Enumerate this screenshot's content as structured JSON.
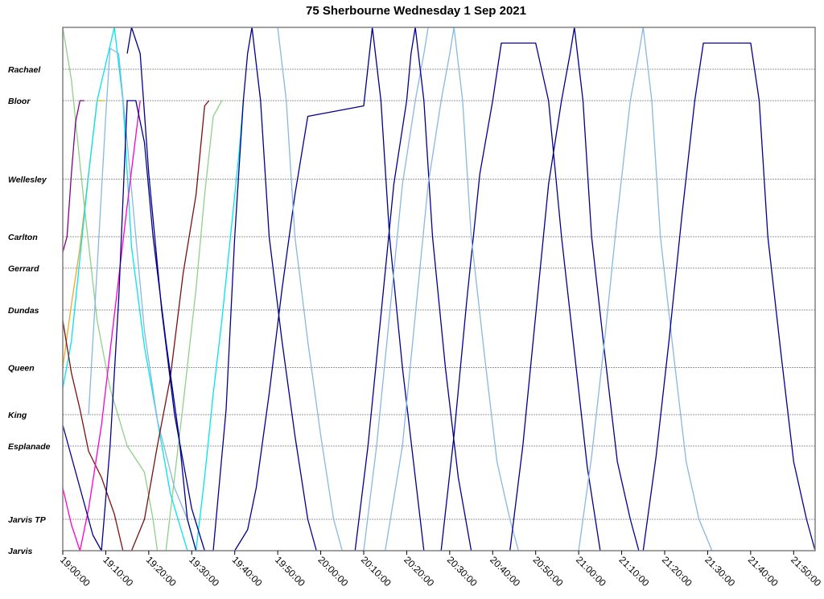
{
  "chart_data": {
    "type": "line",
    "title": "75 Sherbourne Wednesday 1 Sep 2021",
    "x_axis": {
      "min": "19:00:00",
      "max": "21:55:00",
      "ticks": [
        "19:00:00",
        "19:10:00",
        "19:20:00",
        "19:30:00",
        "19:40:00",
        "19:50:00",
        "20:00:00",
        "20:10:00",
        "20:20:00",
        "20:30:00",
        "20:40:00",
        "20:50:00",
        "21:00:00",
        "21:10:00",
        "21:20:00",
        "21:30:00",
        "21:40:00",
        "21:50:00"
      ]
    },
    "y_axis": {
      "stops": [
        {
          "name": "Jarvis",
          "pos": 0
        },
        {
          "name": "Jarvis TP",
          "pos": 0.06
        },
        {
          "name": "Esplanade",
          "pos": 0.2
        },
        {
          "name": "King",
          "pos": 0.26
        },
        {
          "name": "Queen",
          "pos": 0.35
        },
        {
          "name": "Dundas",
          "pos": 0.46
        },
        {
          "name": "Gerrard",
          "pos": 0.54
        },
        {
          "name": "Carlton",
          "pos": 0.6
        },
        {
          "name": "Wellesley",
          "pos": 0.71
        },
        {
          "name": "Bloor",
          "pos": 0.86
        },
        {
          "name": "Rachael",
          "pos": 0.92
        }
      ],
      "max": 1.0
    },
    "grid": "horizontal",
    "legend": "none",
    "series": [
      {
        "color": "#8fd08a",
        "points": [
          [
            "19:00:00",
            1.0
          ],
          [
            "19:02:00",
            0.9
          ],
          [
            "19:05:00",
            0.66
          ],
          [
            "19:08:00",
            0.44
          ],
          [
            "19:11:00",
            0.31
          ],
          [
            "19:15:00",
            0.2
          ],
          [
            "19:19:00",
            0.15
          ],
          [
            "19:21:00",
            0.06
          ],
          [
            "19:22:00",
            0.0
          ]
        ]
      },
      {
        "color": "#8fd08a",
        "points": [
          [
            "19:24:00",
            0.0
          ],
          [
            "19:26:00",
            0.14
          ],
          [
            "19:28:00",
            0.28
          ],
          [
            "19:31:00",
            0.5
          ],
          [
            "19:33:00",
            0.68
          ],
          [
            "19:35:00",
            0.83
          ],
          [
            "19:37:00",
            0.86
          ]
        ]
      },
      {
        "color": "#f5a623",
        "points": [
          [
            "19:00:00",
            0.35
          ],
          [
            "19:02:00",
            0.47
          ],
          [
            "19:04:00",
            0.58
          ],
          [
            "19:06:00",
            0.72
          ],
          [
            "19:08:00",
            0.86
          ],
          [
            "19:10:00",
            0.86
          ]
        ]
      },
      {
        "color": "#800080",
        "points": [
          [
            "19:00:00",
            0.57
          ],
          [
            "19:01:00",
            0.6
          ],
          [
            "19:02:00",
            0.72
          ],
          [
            "19:03:00",
            0.82
          ],
          [
            "19:04:00",
            0.86
          ],
          [
            "19:05:00",
            0.86
          ]
        ]
      },
      {
        "color": "#00e5ee",
        "points": [
          [
            "19:00:00",
            0.31
          ],
          [
            "19:02:00",
            0.4
          ],
          [
            "19:04:00",
            0.56
          ],
          [
            "19:06:00",
            0.72
          ],
          [
            "19:08:00",
            0.86
          ],
          [
            "19:12:00",
            1.0
          ],
          [
            "19:14:00",
            0.86
          ],
          [
            "19:16:00",
            0.58
          ],
          [
            "19:19:00",
            0.39
          ],
          [
            "19:22:00",
            0.25
          ],
          [
            "19:25:00",
            0.11
          ],
          [
            "19:29:00",
            0.0
          ],
          [
            "19:31:00",
            0.0
          ],
          [
            "19:33:00",
            0.14
          ],
          [
            "19:35:00",
            0.3
          ],
          [
            "19:37:00",
            0.44
          ],
          [
            "19:39:00",
            0.6
          ],
          [
            "19:41:00",
            0.76
          ],
          [
            "19:42:00",
            0.86
          ]
        ]
      },
      {
        "color": "#87b8e0",
        "points": [
          [
            "19:06:00",
            0.26
          ],
          [
            "19:08:00",
            0.54
          ],
          [
            "19:10:00",
            0.83
          ],
          [
            "19:11:00",
            0.96
          ],
          [
            "19:13:00",
            0.95
          ],
          [
            "19:15:00",
            0.78
          ],
          [
            "19:17:00",
            0.6
          ],
          [
            "19:19:00",
            0.42
          ],
          [
            "19:22:00",
            0.25
          ],
          [
            "19:26:00",
            0.12
          ],
          [
            "19:29:00",
            0.06
          ],
          [
            "19:31:00",
            0.0
          ]
        ]
      },
      {
        "color": "#7b1010",
        "points": [
          [
            "19:00:00",
            0.44
          ],
          [
            "19:02:00",
            0.34
          ],
          [
            "19:04:00",
            0.27
          ],
          [
            "19:06:00",
            0.19
          ],
          [
            "19:09:00",
            0.14
          ],
          [
            "19:12:00",
            0.07
          ],
          [
            "19:14:00",
            0.0
          ],
          [
            "19:16:00",
            0.0
          ],
          [
            "19:19:00",
            0.06
          ],
          [
            "19:22:00",
            0.2
          ],
          [
            "19:25:00",
            0.33
          ],
          [
            "19:28:00",
            0.53
          ],
          [
            "19:31:00",
            0.68
          ],
          [
            "19:33:00",
            0.85
          ],
          [
            "19:34:00",
            0.86
          ]
        ]
      },
      {
        "color": "#ff00cc",
        "points": [
          [
            "19:00:00",
            0.12
          ],
          [
            "19:02:00",
            0.05
          ],
          [
            "19:04:00",
            0.0
          ],
          [
            "19:06:00",
            0.08
          ],
          [
            "19:09:00",
            0.24
          ],
          [
            "19:12:00",
            0.45
          ],
          [
            "19:15:00",
            0.66
          ],
          [
            "19:18:00",
            0.86
          ]
        ]
      },
      {
        "color": "#00008b",
        "points": [
          [
            "19:00:00",
            0.24
          ],
          [
            "19:04:00",
            0.12
          ],
          [
            "19:07:00",
            0.03
          ],
          [
            "19:09:00",
            0.0
          ],
          [
            "19:11:00",
            0.2
          ],
          [
            "19:13:00",
            0.48
          ],
          [
            "19:15:00",
            0.86
          ],
          [
            "19:17:00",
            0.86
          ],
          [
            "19:19:00",
            0.78
          ],
          [
            "19:21:00",
            0.6
          ],
          [
            "19:24:00",
            0.4
          ],
          [
            "19:27:00",
            0.22
          ],
          [
            "19:29:00",
            0.06
          ],
          [
            "19:31:00",
            0.0
          ],
          [
            "19:35:00",
            0.0
          ],
          [
            "19:38:00",
            0.27
          ],
          [
            "19:40:00",
            0.6
          ],
          [
            "19:42:00",
            0.86
          ],
          [
            "19:43:00",
            0.95
          ],
          [
            "19:44:00",
            1.0
          ]
        ]
      },
      {
        "color": "#00008b",
        "points": [
          [
            "19:15:00",
            0.95
          ],
          [
            "19:16:00",
            1.0
          ],
          [
            "19:18:00",
            0.95
          ],
          [
            "19:20:00",
            0.72
          ],
          [
            "19:23:00",
            0.46
          ],
          [
            "19:26:00",
            0.26
          ],
          [
            "19:30:00",
            0.08
          ],
          [
            "19:33:00",
            0.0
          ]
        ]
      },
      {
        "color": "#00008b",
        "points": [
          [
            "19:44:00",
            1.0
          ],
          [
            "19:46:00",
            0.86
          ],
          [
            "19:48:00",
            0.6
          ],
          [
            "19:51:00",
            0.4
          ],
          [
            "19:54:00",
            0.22
          ],
          [
            "19:57:00",
            0.06
          ],
          [
            "19:59:00",
            0.0
          ]
        ]
      },
      {
        "color": "#00008b",
        "points": [
          [
            "19:40:00",
            0.0
          ],
          [
            "19:43:00",
            0.04
          ],
          [
            "19:45:00",
            0.12
          ],
          [
            "19:48:00",
            0.3
          ],
          [
            "19:51:00",
            0.5
          ],
          [
            "19:54:00",
            0.68
          ],
          [
            "19:57:00",
            0.83
          ],
          [
            "20:10:00",
            0.85
          ],
          [
            "20:12:00",
            1.0
          ],
          [
            "20:14:00",
            0.86
          ],
          [
            "20:16:00",
            0.6
          ],
          [
            "20:19:00",
            0.35
          ],
          [
            "20:22:00",
            0.14
          ],
          [
            "20:24:00",
            0.0
          ]
        ]
      },
      {
        "color": "#87b8e0",
        "points": [
          [
            "19:50:00",
            1.0
          ],
          [
            "19:52:00",
            0.86
          ],
          [
            "19:54:00",
            0.6
          ],
          [
            "19:57:00",
            0.4
          ],
          [
            "20:00:00",
            0.22
          ],
          [
            "20:03:00",
            0.06
          ],
          [
            "20:05:00",
            0.0
          ],
          [
            "20:10:00",
            0.0
          ],
          [
            "20:13:00",
            0.2
          ],
          [
            "20:16:00",
            0.45
          ],
          [
            "20:19:00",
            0.7
          ],
          [
            "20:22:00",
            0.86
          ],
          [
            "20:24:00",
            0.95
          ],
          [
            "20:25:00",
            1.0
          ]
        ]
      },
      {
        "color": "#00008b",
        "points": [
          [
            "20:08:00",
            0.0
          ],
          [
            "20:11:00",
            0.2
          ],
          [
            "20:14:00",
            0.45
          ],
          [
            "20:17:00",
            0.7
          ],
          [
            "20:20:00",
            0.86
          ],
          [
            "20:21:00",
            0.95
          ],
          [
            "20:22:00",
            1.0
          ],
          [
            "20:24:00",
            0.86
          ],
          [
            "20:26:00",
            0.6
          ],
          [
            "20:29:00",
            0.35
          ],
          [
            "20:32:00",
            0.14
          ],
          [
            "20:35:00",
            0.0
          ]
        ]
      },
      {
        "color": "#00008b",
        "points": [
          [
            "20:28:00",
            0.0
          ],
          [
            "20:31:00",
            0.22
          ],
          [
            "20:34:00",
            0.48
          ],
          [
            "20:37:00",
            0.72
          ],
          [
            "20:40:00",
            0.86
          ],
          [
            "20:42:00",
            0.97
          ],
          [
            "20:50:00",
            0.97
          ],
          [
            "20:53:00",
            0.86
          ],
          [
            "20:56:00",
            0.6
          ],
          [
            "20:59:00",
            0.38
          ],
          [
            "21:02:00",
            0.16
          ],
          [
            "21:05:00",
            0.0
          ]
        ]
      },
      {
        "color": "#87b8e0",
        "points": [
          [
            "20:15:00",
            0.0
          ],
          [
            "20:19:00",
            0.2
          ],
          [
            "20:22:00",
            0.45
          ],
          [
            "20:25:00",
            0.7
          ],
          [
            "20:28:00",
            0.86
          ],
          [
            "20:30:00",
            0.95
          ],
          [
            "20:31:00",
            1.0
          ],
          [
            "20:33:00",
            0.86
          ],
          [
            "20:35:00",
            0.6
          ],
          [
            "20:38:00",
            0.38
          ],
          [
            "20:41:00",
            0.17
          ],
          [
            "20:44:00",
            0.06
          ],
          [
            "20:46:00",
            0.0
          ]
        ]
      },
      {
        "color": "#00008b",
        "points": [
          [
            "20:44:00",
            0.0
          ],
          [
            "20:47:00",
            0.2
          ],
          [
            "20:50:00",
            0.45
          ],
          [
            "20:53:00",
            0.7
          ],
          [
            "20:56:00",
            0.86
          ],
          [
            "20:58:00",
            0.95
          ],
          [
            "20:59:00",
            1.0
          ],
          [
            "21:01:00",
            0.86
          ],
          [
            "21:03:00",
            0.6
          ],
          [
            "21:06:00",
            0.38
          ],
          [
            "21:09:00",
            0.17
          ],
          [
            "21:12:00",
            0.06
          ],
          [
            "21:14:00",
            0.0
          ]
        ]
      },
      {
        "color": "#87b8e0",
        "points": [
          [
            "21:00:00",
            0.0
          ],
          [
            "21:03:00",
            0.18
          ],
          [
            "21:06:00",
            0.4
          ],
          [
            "21:09:00",
            0.64
          ],
          [
            "21:12:00",
            0.86
          ],
          [
            "21:14:00",
            0.95
          ],
          [
            "21:15:00",
            1.0
          ],
          [
            "21:17:00",
            0.86
          ],
          [
            "21:19:00",
            0.6
          ],
          [
            "21:22:00",
            0.38
          ],
          [
            "21:25:00",
            0.17
          ],
          [
            "21:28:00",
            0.06
          ],
          [
            "21:31:00",
            0.0
          ]
        ]
      },
      {
        "color": "#00008b",
        "points": [
          [
            "21:15:00",
            0.0
          ],
          [
            "21:18:00",
            0.18
          ],
          [
            "21:21:00",
            0.4
          ],
          [
            "21:24:00",
            0.64
          ],
          [
            "21:27:00",
            0.86
          ],
          [
            "21:29:00",
            0.97
          ],
          [
            "21:40:00",
            0.97
          ],
          [
            "21:42:00",
            0.86
          ],
          [
            "21:44:00",
            0.6
          ],
          [
            "21:47:00",
            0.38
          ],
          [
            "21:50:00",
            0.17
          ],
          [
            "21:53:00",
            0.06
          ],
          [
            "21:55:00",
            0.0
          ]
        ]
      }
    ]
  }
}
